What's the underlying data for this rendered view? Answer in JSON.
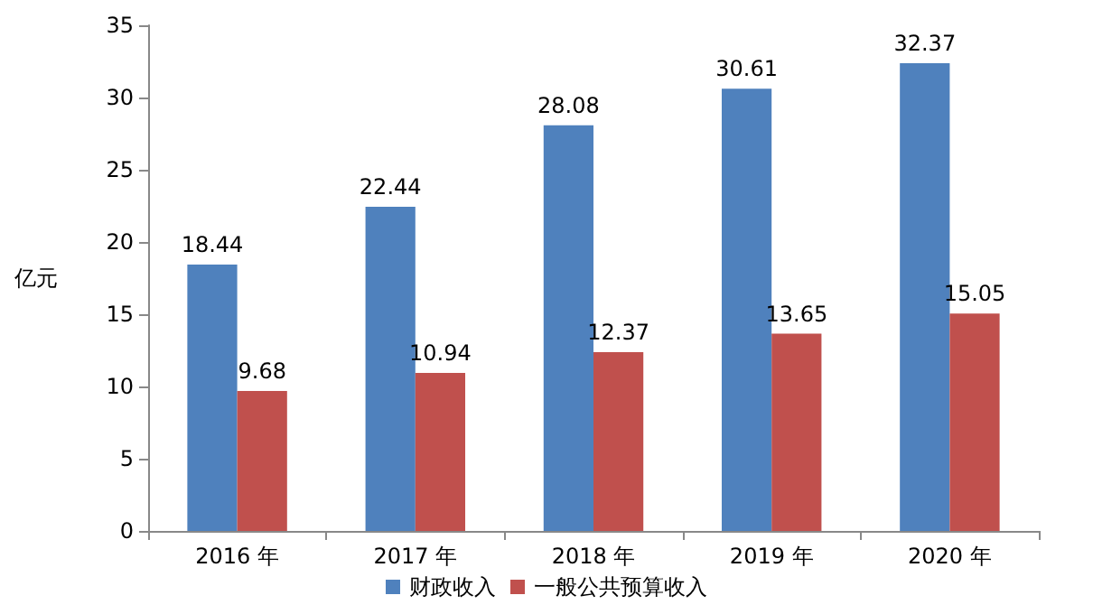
{
  "chart_data": {
    "type": "bar",
    "ylabel": "亿元",
    "categories": [
      "2016 年",
      "2017 年",
      "2018 年",
      "2019 年",
      "2020 年"
    ],
    "series": [
      {
        "name": "财政收入",
        "color": "#4f81bd",
        "values": [
          18.44,
          22.44,
          28.08,
          30.61,
          32.37
        ]
      },
      {
        "name": "一般公共预算收入",
        "color": "#c0504d",
        "values": [
          9.68,
          10.94,
          12.37,
          13.65,
          15.05
        ]
      }
    ],
    "ylim": [
      0,
      35
    ],
    "yticks": [
      0,
      5,
      10,
      15,
      20,
      25,
      30,
      35
    ],
    "data_labels": true,
    "grid": false,
    "legend": "bottom"
  }
}
